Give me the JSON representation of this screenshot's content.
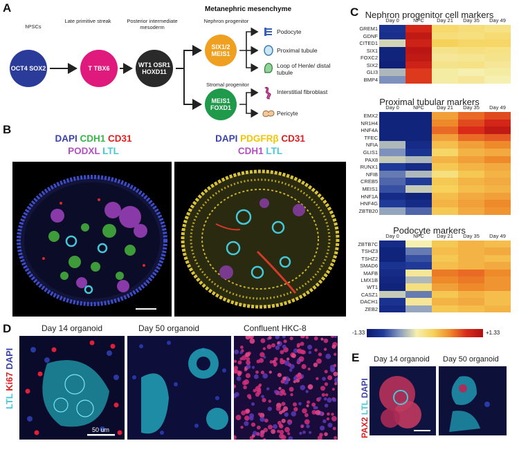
{
  "panel_labels": {
    "a": "A",
    "b": "B",
    "c": "C",
    "d": "D",
    "e": "E"
  },
  "panelA": {
    "region_title": "Metanephric mesenchyme",
    "stages": {
      "hpsc": "hPSCs",
      "late_ps": "Late primitive streak",
      "pim": "Posterior intermediate mesoderm",
      "np": "Nephron progenitor",
      "sp": "Stromal progenitor"
    },
    "nodes": {
      "hpsc": {
        "label": "OCT4 SOX2",
        "color": "#2b3b9a"
      },
      "ps": {
        "label": "T TBX6",
        "color": "#e0197d"
      },
      "pim": {
        "label": "WT1 OSR1 HOXD11",
        "color": "#2a2a2a"
      },
      "np": {
        "label": "SIX1/2 MEIS1",
        "color": "#f0a020"
      },
      "sp": {
        "label": "MEIS1 FOXD1",
        "color": "#1f9a4a"
      }
    },
    "fates": {
      "podocyte": "Podocyte",
      "proximal": "Proximal tubule",
      "loop": "Loop of Henle/ distal tubule",
      "fibroblast": "Interstitial fibroblast",
      "pericyte": "Pericyte"
    },
    "fate_icons": [
      "podocyte-icon",
      "proximal-tubule-icon",
      "loop-of-henle-icon",
      "fibroblast-icon",
      "pericyte-icon"
    ]
  },
  "panelB": {
    "left_title": [
      {
        "text": "DAPI",
        "color": "#3a44a8"
      },
      {
        "text": "CDH1",
        "color": "#39b54a"
      },
      {
        "text": "CD31",
        "color": "#e02020"
      }
    ],
    "left_title2": [
      {
        "text": "PODXL",
        "color": "#b34fc0"
      },
      {
        "text": "LTL",
        "color": "#45c8d8"
      }
    ],
    "right_title": [
      {
        "text": "DAPI",
        "color": "#3a44a8"
      },
      {
        "text": "PDGFRβ",
        "color": "#f2c500"
      },
      {
        "text": "CD31",
        "color": "#e02020"
      }
    ],
    "right_title2": [
      {
        "text": "CDH1",
        "color": "#b34fc0"
      },
      {
        "text": "LTL",
        "color": "#45c8d8"
      }
    ]
  },
  "panelC": {
    "columns": [
      "Day 0",
      "NPC",
      "Day 21",
      "Day 35",
      "Day 49"
    ],
    "colorbar": {
      "min": "-1.33",
      "max": "+1.33"
    },
    "heatmaps": [
      {
        "title": "Nephron progenitor cell markers",
        "genes": [
          "GREM1",
          "GDNF",
          "CITED1",
          "SIX1",
          "FOXC2",
          "SIX2",
          "GLI3",
          "BMP4"
        ],
        "values": [
          [
            -1.0,
            1.05,
            0.28,
            0.22,
            0.18
          ],
          [
            -1.05,
            1.2,
            0.22,
            0.2,
            0.25
          ],
          [
            -0.15,
            1.1,
            0.35,
            0.3,
            0.3
          ],
          [
            -1.2,
            1.25,
            0.15,
            0.2,
            0.18
          ],
          [
            -1.2,
            1.2,
            0.1,
            0.12,
            0.15
          ],
          [
            -1.25,
            1.1,
            0.15,
            0.18,
            0.1
          ],
          [
            -0.3,
            0.95,
            0.05,
            0.0,
            0.05
          ],
          [
            -0.5,
            0.95,
            0.05,
            0.1,
            0.0
          ]
        ]
      },
      {
        "title": "Proximal tubular markers",
        "genes": [
          "EMX2",
          "NR1H4",
          "HNF4A",
          "TFEC",
          "NFIA",
          "GLIS1",
          "PAX8",
          "RUNX1",
          "NFIB",
          "CREB5",
          "MEIS1",
          "HNF1A",
          "HNF4G",
          "ZBTB20"
        ],
        "values": [
          [
            -1.2,
            -1.2,
            0.6,
            0.8,
            0.9
          ],
          [
            -1.2,
            -1.2,
            0.7,
            0.9,
            1.05
          ],
          [
            -1.2,
            -1.2,
            0.8,
            1.0,
            1.2
          ],
          [
            -1.2,
            -1.2,
            0.6,
            0.8,
            0.85
          ],
          [
            -0.3,
            -1.1,
            0.45,
            0.6,
            0.7
          ],
          [
            -0.5,
            -1.0,
            0.3,
            0.5,
            0.55
          ],
          [
            -0.2,
            -0.3,
            0.5,
            0.6,
            0.7
          ],
          [
            -0.9,
            -1.1,
            0.4,
            0.5,
            0.55
          ],
          [
            -0.6,
            -0.3,
            0.2,
            0.4,
            0.5
          ],
          [
            -0.7,
            -0.9,
            0.4,
            0.5,
            0.55
          ],
          [
            -0.8,
            -0.2,
            0.35,
            0.45,
            0.5
          ],
          [
            -1.1,
            -1.2,
            0.45,
            0.55,
            0.6
          ],
          [
            -0.9,
            -1.1,
            0.5,
            0.6,
            0.7
          ],
          [
            -0.4,
            -0.7,
            0.4,
            0.55,
            0.65
          ]
        ]
      },
      {
        "title": "Podocyte markers",
        "genes": [
          "ZBTB7C",
          "TSHZ3",
          "TSHZ2",
          "SMAD6",
          "MAFB",
          "LMX1B",
          "WT1",
          "CASZ1",
          "DACH1",
          "ZEB2"
        ],
        "values": [
          [
            -1.1,
            0.0,
            0.4,
            0.5,
            0.45
          ],
          [
            -1.2,
            -0.6,
            0.45,
            0.5,
            0.55
          ],
          [
            -1.2,
            -0.8,
            0.4,
            0.5,
            0.45
          ],
          [
            -1.0,
            -0.9,
            0.45,
            0.5,
            0.55
          ],
          [
            -1.1,
            0.1,
            0.75,
            0.8,
            0.7
          ],
          [
            -1.15,
            -0.3,
            0.7,
            0.75,
            0.65
          ],
          [
            -1.2,
            0.2,
            0.6,
            0.7,
            0.65
          ],
          [
            -0.2,
            -0.6,
            0.4,
            0.5,
            0.45
          ],
          [
            -1.0,
            0.1,
            0.5,
            0.55,
            0.45
          ],
          [
            -1.1,
            -0.4,
            0.4,
            0.45,
            0.5
          ]
        ]
      }
    ]
  },
  "panelD": {
    "captions": [
      "Day 14 organoid",
      "Day 50 organoid",
      "Confluent HKC-8"
    ],
    "side_label": [
      {
        "text": "LTL ",
        "color": "#45c8d8"
      },
      {
        "text": "Ki67 ",
        "color": "#e02020"
      },
      {
        "text": "DAPI",
        "color": "#3a44a8"
      }
    ],
    "scale_bar": "50 um"
  },
  "panelE": {
    "captions": [
      "Day 14 organoid",
      "Day 50 organoid"
    ],
    "side_label": [
      {
        "text": "PAX2 ",
        "color": "#e02020"
      },
      {
        "text": "LTL ",
        "color": "#45c8d8"
      },
      {
        "text": "DAPI",
        "color": "#3a44a8"
      }
    ]
  }
}
